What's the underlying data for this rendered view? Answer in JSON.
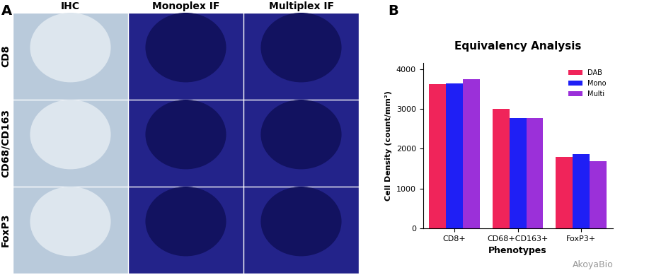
{
  "chart_data": {
    "type": "bar",
    "title": "Equivalency Analysis",
    "x_label": "Phenotypes",
    "y_label": "Cell Density (count/mm²)",
    "categories": [
      "CD8+",
      "CD68+CD163+",
      "FoxP3+"
    ],
    "series": [
      {
        "name": "DAB",
        "color": "#f0245a",
        "values": [
          3620,
          3010,
          1790
        ]
      },
      {
        "name": "Mono",
        "color": "#1f1ff5",
        "values": [
          3640,
          2780,
          1860
        ]
      },
      {
        "name": "Multi",
        "color": "#9b30d9",
        "values": [
          3750,
          2780,
          1690
        ]
      }
    ],
    "ylim": [
      0,
      4150
    ],
    "yticks": [
      0,
      1000,
      2000,
      3000,
      4000
    ],
    "grid": false,
    "legend": "upper right"
  },
  "panel_labels": [
    "A",
    "B"
  ],
  "panel_a": {
    "columns": [
      "IHC",
      "Monoplex IF",
      "Multiplex IF"
    ],
    "rows": [
      "CD8",
      "CD68/CD163",
      "FoxP3"
    ]
  },
  "watermark": "AkoyaBio"
}
